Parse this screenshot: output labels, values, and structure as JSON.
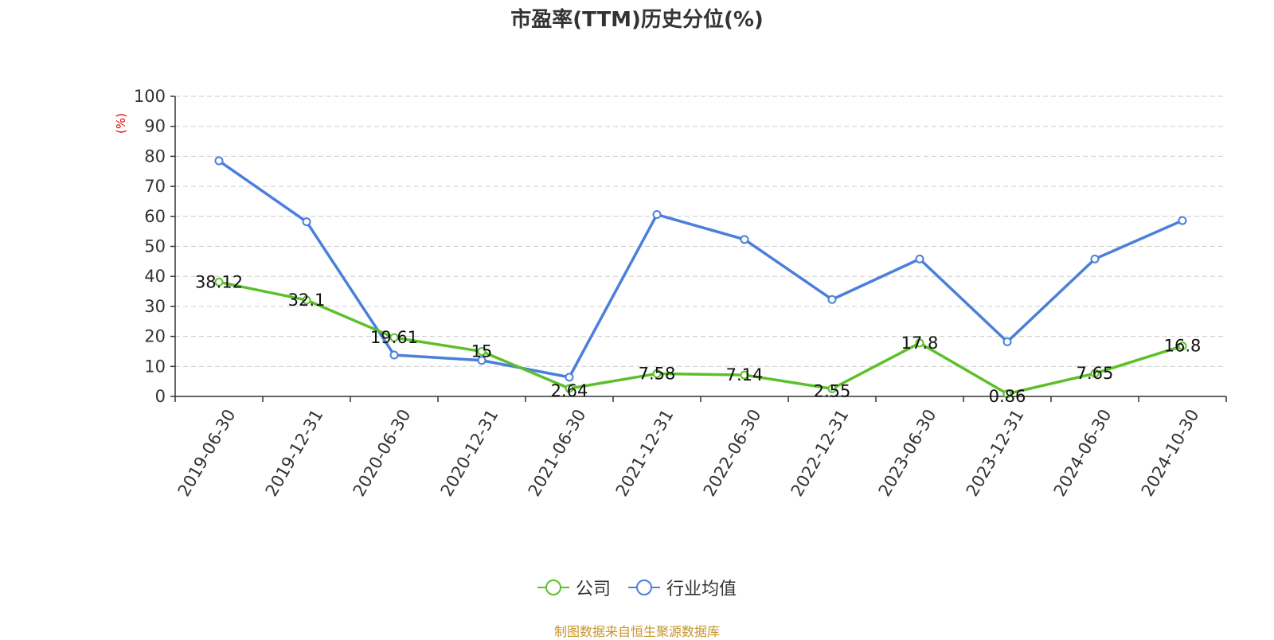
{
  "title": "市盈率(TTM)历史分位(%)",
  "footer": "制图数据来自恒生聚源数据库",
  "colors": {
    "company": "#5cc02a",
    "industry": "#4a7fdb",
    "ylabel": "#e60000",
    "grid": "#cccccc",
    "axis": "#333333"
  },
  "chart_data": {
    "type": "line",
    "title": "市盈率(TTM)历史分位(%)",
    "ylabel": "(%)",
    "xlabel": "",
    "ylim": [
      0,
      100
    ],
    "yticks": [
      0,
      10,
      20,
      30,
      40,
      50,
      60,
      70,
      80,
      90,
      100
    ],
    "grid": true,
    "legend_position": "bottom-center",
    "categories": [
      "2019-06-30",
      "2019-12-31",
      "2020-06-30",
      "2020-12-31",
      "2021-06-30",
      "2021-12-31",
      "2022-06-30",
      "2022-12-31",
      "2023-06-30",
      "2023-12-31",
      "2024-06-30",
      "2024-10-30"
    ],
    "series": [
      {
        "name": "公司",
        "color": "#5cc02a",
        "show_labels": true,
        "values": [
          38.12,
          32.1,
          19.61,
          15,
          2.64,
          7.58,
          7.14,
          2.55,
          17.8,
          0.86,
          7.65,
          16.8
        ]
      },
      {
        "name": "行业均值",
        "color": "#4a7fdb",
        "show_labels": false,
        "values": [
          78.5,
          58.2,
          13.8,
          12.0,
          6.4,
          60.6,
          52.3,
          32.3,
          45.8,
          18.2,
          45.8,
          58.6
        ]
      }
    ]
  }
}
